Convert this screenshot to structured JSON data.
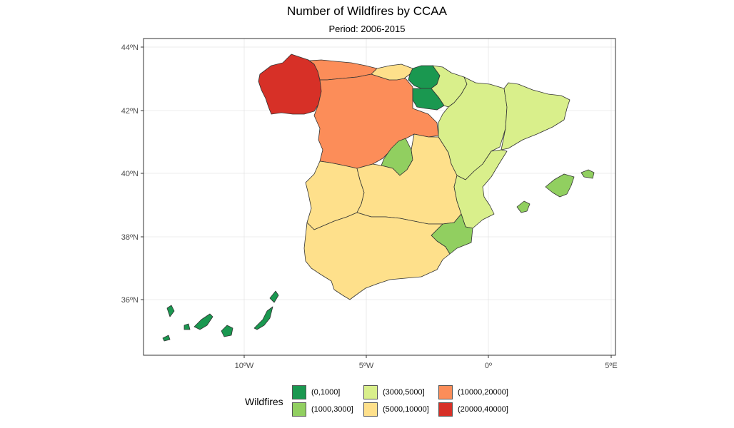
{
  "title": "Number of Wildfires by CCAA",
  "subtitle": "Period: 2006-2015",
  "axes": {
    "x_ticks": [
      "10ºW",
      "5ºW",
      "0º",
      "5ºE"
    ],
    "y_ticks": [
      "44ºN",
      "42ºN",
      "40ºN",
      "38ºN",
      "36ºN"
    ]
  },
  "legend": {
    "title": "Wildfires",
    "items": [
      {
        "label": "(0,1000]",
        "color": "#1a9850"
      },
      {
        "label": "(1000,3000]",
        "color": "#91cf60"
      },
      {
        "label": "(3000,5000]",
        "color": "#d9ef8b"
      },
      {
        "label": "(5000,10000]",
        "color": "#fee08b"
      },
      {
        "label": "(10000,20000]",
        "color": "#fc8d59"
      },
      {
        "label": "(20000,40000]",
        "color": "#d73027"
      }
    ]
  },
  "colors": {
    "cls1": "#1a9850",
    "cls2": "#91cf60",
    "cls3": "#d9ef8b",
    "cls4": "#fee08b",
    "cls5": "#fc8d59",
    "cls6": "#d73027"
  }
}
